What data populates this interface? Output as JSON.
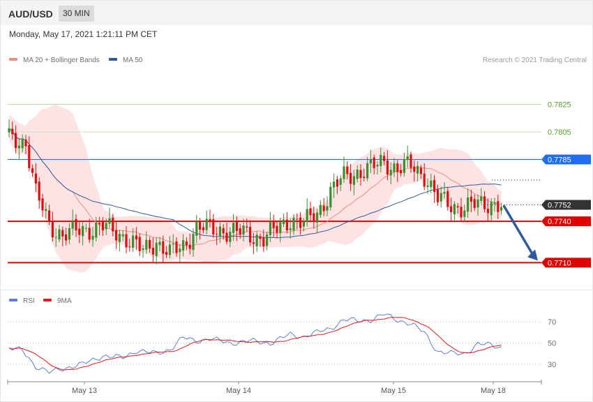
{
  "header": {
    "symbol": "AUD/USD",
    "timeframe": "30 MIN"
  },
  "datetime": "Monday, May 17, 2021 1:21:11 PM CET",
  "legend": {
    "price": [
      {
        "label": "MA 20 + Bollinger Bands",
        "color": "#f08c84"
      },
      {
        "label": "MA 50",
        "color": "#2f5a9c"
      }
    ],
    "rsi": [
      {
        "label": "RSI",
        "color": "#5b7fd6"
      },
      {
        "label": "9MA",
        "color": "#e31b1b"
      }
    ]
  },
  "credit": "Research © 2021 Trading Central",
  "chart_data": [
    {
      "type": "candlestick",
      "ylim": [
        0.7698,
        0.784
      ],
      "levels": [
        {
          "value": 0.7825,
          "label": "0.7825",
          "color": "#b9d79a",
          "text_color": "#5aa02c",
          "style": "line"
        },
        {
          "value": 0.7805,
          "label": "0.7805",
          "color": "#c9dfb4",
          "text_color": "#5aa02c",
          "style": "line"
        },
        {
          "value": 0.7785,
          "label": "0.7785",
          "color": "#1f6ef0",
          "text_color": "#ffffff",
          "style": "tag"
        },
        {
          "value": 0.7752,
          "label": "0.7752",
          "color": "#333333",
          "text_color": "#ffffff",
          "style": "current"
        },
        {
          "value": 0.774,
          "label": "0.7740",
          "color": "#e00000",
          "text_color": "#ffffff",
          "style": "tag"
        },
        {
          "value": 0.771,
          "label": "0.7710",
          "color": "#e00000",
          "text_color": "#ffffff",
          "style": "tag"
        }
      ],
      "forecast_arrow": {
        "from": 0.7751,
        "to": 0.7711
      },
      "x_labels": [
        "May 13",
        "May 14",
        "May 15",
        "May 18"
      ],
      "anchors": [
        {
          "i": 0,
          "p": 0.78
        },
        {
          "i": 5,
          "p": 0.7798
        },
        {
          "i": 8,
          "p": 0.776
        },
        {
          "i": 12,
          "p": 0.7738
        },
        {
          "i": 16,
          "p": 0.773
        },
        {
          "i": 22,
          "p": 0.7734
        },
        {
          "i": 28,
          "p": 0.7736
        },
        {
          "i": 34,
          "p": 0.773
        },
        {
          "i": 40,
          "p": 0.7718
        },
        {
          "i": 44,
          "p": 0.7726
        },
        {
          "i": 48,
          "p": 0.7716
        },
        {
          "i": 52,
          "p": 0.7722
        },
        {
          "i": 56,
          "p": 0.7736
        },
        {
          "i": 60,
          "p": 0.7734
        },
        {
          "i": 64,
          "p": 0.7734
        },
        {
          "i": 68,
          "p": 0.7732
        },
        {
          "i": 72,
          "p": 0.773
        },
        {
          "i": 76,
          "p": 0.7728
        },
        {
          "i": 80,
          "p": 0.7734
        },
        {
          "i": 84,
          "p": 0.7742
        },
        {
          "i": 88,
          "p": 0.7738
        },
        {
          "i": 92,
          "p": 0.7746
        },
        {
          "i": 96,
          "p": 0.7762
        },
        {
          "i": 100,
          "p": 0.7772
        },
        {
          "i": 104,
          "p": 0.7776
        },
        {
          "i": 108,
          "p": 0.7778
        },
        {
          "i": 112,
          "p": 0.7784
        },
        {
          "i": 116,
          "p": 0.7778
        },
        {
          "i": 120,
          "p": 0.778
        },
        {
          "i": 124,
          "p": 0.7774
        },
        {
          "i": 128,
          "p": 0.7756
        },
        {
          "i": 132,
          "p": 0.7752
        },
        {
          "i": 136,
          "p": 0.775
        },
        {
          "i": 140,
          "p": 0.7752
        },
        {
          "i": 144,
          "p": 0.7754
        },
        {
          "i": 147,
          "p": 0.7751
        }
      ]
    },
    {
      "type": "line",
      "title": "RSI",
      "ylim": [
        18,
        84
      ],
      "gridlines": [
        {
          "value": 70,
          "label": "70"
        },
        {
          "value": 50,
          "label": "50"
        },
        {
          "value": 30,
          "label": "30"
        }
      ],
      "anchors": [
        {
          "i": 0,
          "v": 45
        },
        {
          "i": 4,
          "v": 43
        },
        {
          "i": 8,
          "v": 28
        },
        {
          "i": 12,
          "v": 22
        },
        {
          "i": 16,
          "v": 26
        },
        {
          "i": 22,
          "v": 30
        },
        {
          "i": 28,
          "v": 38
        },
        {
          "i": 34,
          "v": 36
        },
        {
          "i": 38,
          "v": 43
        },
        {
          "i": 44,
          "v": 40
        },
        {
          "i": 48,
          "v": 44
        },
        {
          "i": 52,
          "v": 55
        },
        {
          "i": 56,
          "v": 52
        },
        {
          "i": 60,
          "v": 54
        },
        {
          "i": 66,
          "v": 50
        },
        {
          "i": 72,
          "v": 52
        },
        {
          "i": 78,
          "v": 50
        },
        {
          "i": 84,
          "v": 58
        },
        {
          "i": 88,
          "v": 56
        },
        {
          "i": 92,
          "v": 60
        },
        {
          "i": 96,
          "v": 64
        },
        {
          "i": 100,
          "v": 72
        },
        {
          "i": 104,
          "v": 71
        },
        {
          "i": 108,
          "v": 72
        },
        {
          "i": 112,
          "v": 77
        },
        {
          "i": 116,
          "v": 72
        },
        {
          "i": 120,
          "v": 68
        },
        {
          "i": 124,
          "v": 60
        },
        {
          "i": 128,
          "v": 42
        },
        {
          "i": 132,
          "v": 40
        },
        {
          "i": 136,
          "v": 40
        },
        {
          "i": 140,
          "v": 49
        },
        {
          "i": 144,
          "v": 48
        },
        {
          "i": 147,
          "v": 46
        }
      ]
    }
  ]
}
